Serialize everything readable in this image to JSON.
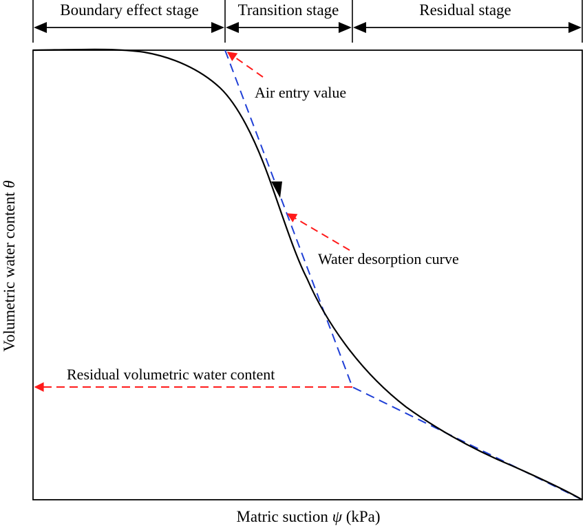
{
  "stages": [
    {
      "label": "Boundary effect stage"
    },
    {
      "label": "Transition stage"
    },
    {
      "label": "Residual stage"
    }
  ],
  "annotations": {
    "air_entry": "Air entry value",
    "desorption": "Water desorption curve",
    "residual": "Residual volumetric water content"
  },
  "axes": {
    "x_label": {
      "name": "Matric suction",
      "symbol": "ψ",
      "unit": "(kPa)"
    },
    "y_label": {
      "name": "Volumetric water content",
      "symbol": "θ"
    }
  },
  "colors": {
    "curve": "#000000",
    "tangent_lines": "#1f3fd6",
    "annotation_arrows": "#ff1a1a",
    "frame": "#000000"
  }
}
